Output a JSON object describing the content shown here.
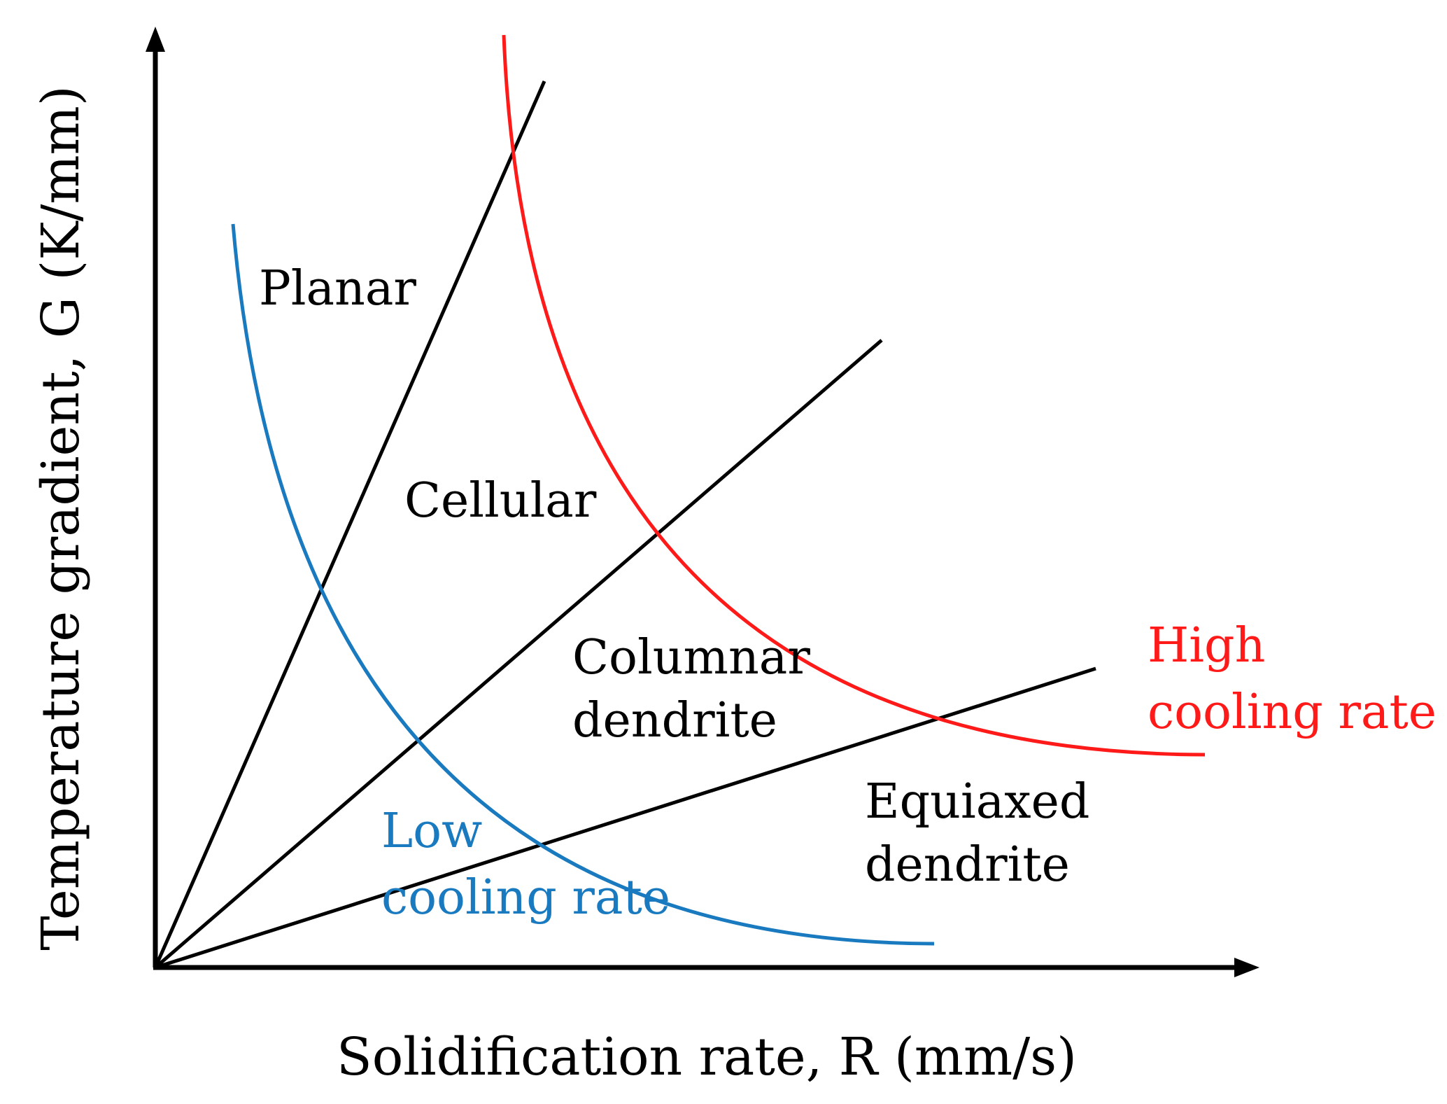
{
  "figure": {
    "type": "solidification-map",
    "x_axis_label": "Solidification rate, R (mm/s)",
    "y_axis_label": "Temperature gradient, G (K/mm)",
    "regions": {
      "planar": "Planar",
      "cellular": "Cellular",
      "columnar_line1": "Columnar",
      "columnar_line2": "dendrite",
      "equiaxed_line1": "Equiaxed",
      "equiaxed_line2": "dendrite"
    },
    "curves": {
      "low": {
        "line1": "Low",
        "line2": "cooling rate",
        "color": "#1a7abf"
      },
      "high": {
        "line1": "High",
        "line2": "cooling rate",
        "color": "#ff1a1a"
      }
    },
    "line_color": "#000000"
  }
}
